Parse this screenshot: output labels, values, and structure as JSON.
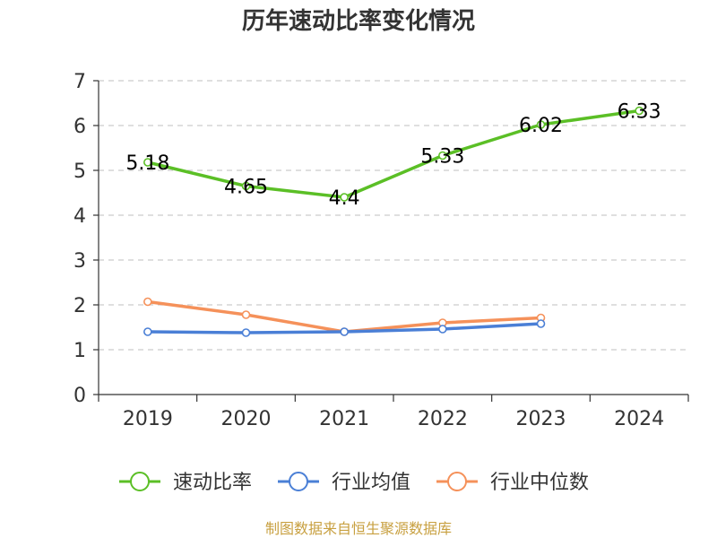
{
  "chart_data": {
    "type": "line",
    "title": "历年速动比率变化情况",
    "xlabel": "",
    "ylabel": "",
    "categories": [
      "2019",
      "2020",
      "2021",
      "2022",
      "2023",
      "2024"
    ],
    "ylim": [
      0,
      7
    ],
    "yticks": [
      "0",
      "1",
      "2",
      "3",
      "4",
      "5",
      "6",
      "7"
    ],
    "grid": true,
    "series": [
      {
        "name": "速动比率",
        "color": "#5bbf26",
        "values": [
          5.18,
          4.65,
          4.4,
          5.33,
          6.02,
          6.33
        ],
        "labels": [
          "5.18",
          "4.65",
          "4.4",
          "5.33",
          "6.02",
          "6.33"
        ]
      },
      {
        "name": "行业均值",
        "color": "#4a7fd6",
        "values": [
          1.4,
          1.38,
          1.4,
          1.46,
          1.58,
          null
        ],
        "labels": []
      },
      {
        "name": "行业中位数",
        "color": "#f5915a",
        "values": [
          2.07,
          1.78,
          1.4,
          1.6,
          1.71,
          null
        ],
        "labels": []
      }
    ],
    "legend_position": "bottom"
  },
  "footer": {
    "source": "制图数据来自恒生聚源数据库"
  }
}
